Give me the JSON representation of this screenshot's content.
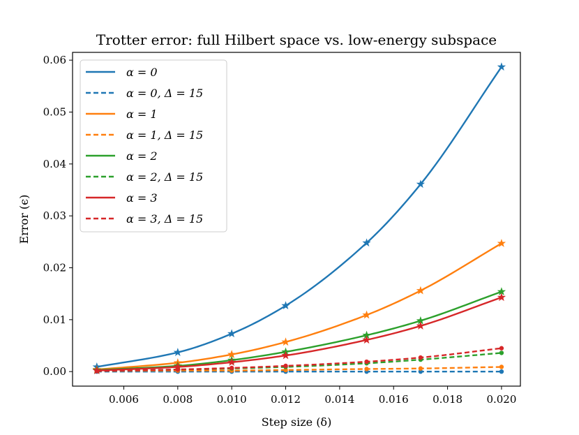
{
  "chart_data": {
    "type": "line",
    "title": "Trotter error: full Hilbert space vs. low-energy subspace",
    "xlabel": "Step size (δ)",
    "ylabel": "Error (ϵ)",
    "xlim": [
      0.0041,
      0.0207
    ],
    "ylim": [
      -0.0028,
      0.0615
    ],
    "x_ticks": [
      0.006,
      0.008,
      0.01,
      0.012,
      0.014,
      0.016,
      0.018,
      0.02
    ],
    "x_tick_labels": [
      "0.006",
      "0.008",
      "0.010",
      "0.012",
      "0.014",
      "0.016",
      "0.018",
      "0.020"
    ],
    "y_ticks": [
      0.0,
      0.01,
      0.02,
      0.03,
      0.04,
      0.05,
      0.06
    ],
    "y_tick_labels": [
      "0.00",
      "0.01",
      "0.02",
      "0.03",
      "0.04",
      "0.05",
      "0.06"
    ],
    "grid": false,
    "legend_position": "top-left",
    "x": [
      0.005,
      0.008,
      0.01,
      0.012,
      0.015,
      0.017,
      0.02
    ],
    "series": [
      {
        "name": "α = 0",
        "color": "#1f77b4",
        "style": "solid",
        "marker": "star",
        "values": [
          0.0009,
          0.0037,
          0.0073,
          0.0127,
          0.0248,
          0.0361,
          0.0587
        ]
      },
      {
        "name": "α = 0, Δ = 15",
        "color": "#1f77b4",
        "style": "dashed",
        "marker": "circle",
        "values": [
          0.0,
          0.0,
          0.0,
          0.0,
          0.0,
          0.0,
          0.0
        ]
      },
      {
        "name": "α = 1",
        "color": "#ff7f0e",
        "style": "solid",
        "marker": "star",
        "values": [
          0.0004,
          0.0017,
          0.0033,
          0.0057,
          0.0109,
          0.0156,
          0.0247
        ]
      },
      {
        "name": "α = 1, Δ = 15",
        "color": "#ff7f0e",
        "style": "dashed",
        "marker": "circle",
        "values": [
          0.0001,
          0.0002,
          0.0002,
          0.0003,
          0.0005,
          0.0006,
          0.0009
        ]
      },
      {
        "name": "α = 2",
        "color": "#2ca02c",
        "style": "solid",
        "marker": "star",
        "values": [
          0.0003,
          0.0011,
          0.0022,
          0.0038,
          0.007,
          0.0098,
          0.0154
        ]
      },
      {
        "name": "α = 2, Δ = 15",
        "color": "#2ca02c",
        "style": "dashed",
        "marker": "circle",
        "values": [
          0.0001,
          0.0004,
          0.0006,
          0.0009,
          0.0016,
          0.0023,
          0.0036
        ]
      },
      {
        "name": "α = 3",
        "color": "#d62728",
        "style": "solid",
        "marker": "star",
        "values": [
          0.0002,
          0.0009,
          0.0018,
          0.0031,
          0.0061,
          0.0088,
          0.0143
        ]
      },
      {
        "name": "α = 3, Δ = 15",
        "color": "#d62728",
        "style": "dashed",
        "marker": "circle",
        "values": [
          0.0001,
          0.0004,
          0.0007,
          0.0011,
          0.0019,
          0.0027,
          0.0045
        ]
      }
    ]
  }
}
